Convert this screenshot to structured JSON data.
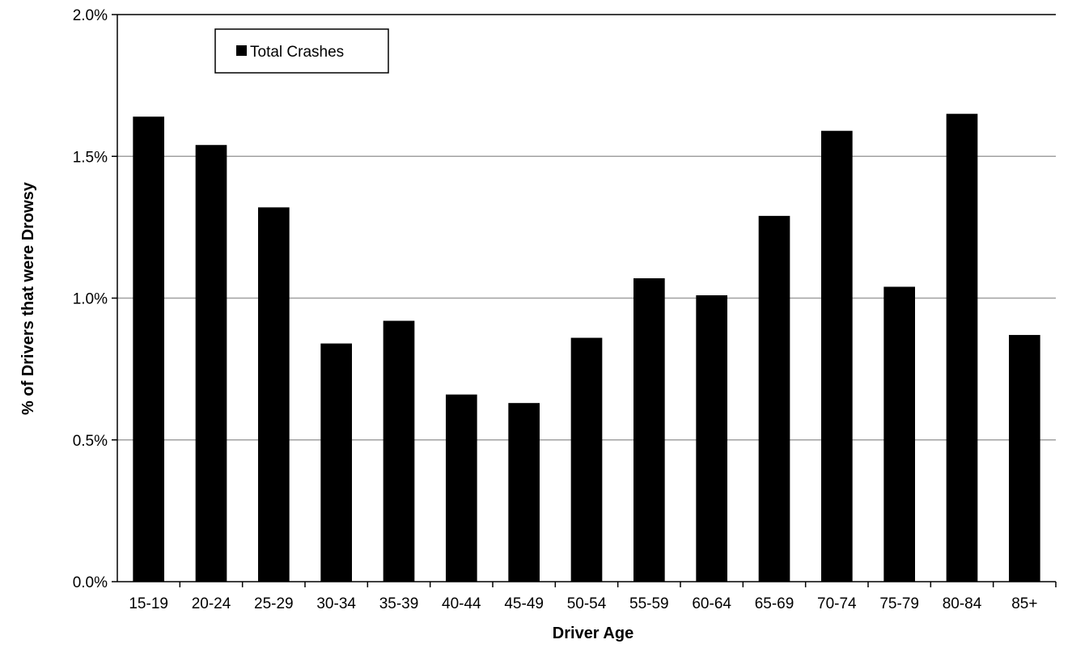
{
  "chart_data": {
    "type": "bar",
    "title": "",
    "xlabel": "Driver Age",
    "ylabel": "% of Drivers that were Drowsy",
    "categories": [
      "15-19",
      "20-24",
      "25-29",
      "30-34",
      "35-39",
      "40-44",
      "45-49",
      "50-54",
      "55-59",
      "60-64",
      "65-69",
      "70-74",
      "75-79",
      "80-84",
      "85+"
    ],
    "series": [
      {
        "name": "Total Crashes",
        "values": [
          1.64,
          1.54,
          1.32,
          0.84,
          0.92,
          0.66,
          0.63,
          0.86,
          1.07,
          1.01,
          1.29,
          1.59,
          1.04,
          1.65,
          0.87
        ]
      }
    ],
    "ylim": [
      0,
      2.0
    ],
    "yticks": [
      "0.0%",
      "0.5%",
      "1.0%",
      "1.5%",
      "2.0%"
    ],
    "ytick_values": [
      0,
      0.5,
      1.0,
      1.5,
      2.0
    ],
    "grid": true,
    "legend_position": "top-left",
    "colors": {
      "bar": "#000000",
      "grid": "#a0a0a0",
      "axis": "#000000"
    }
  }
}
